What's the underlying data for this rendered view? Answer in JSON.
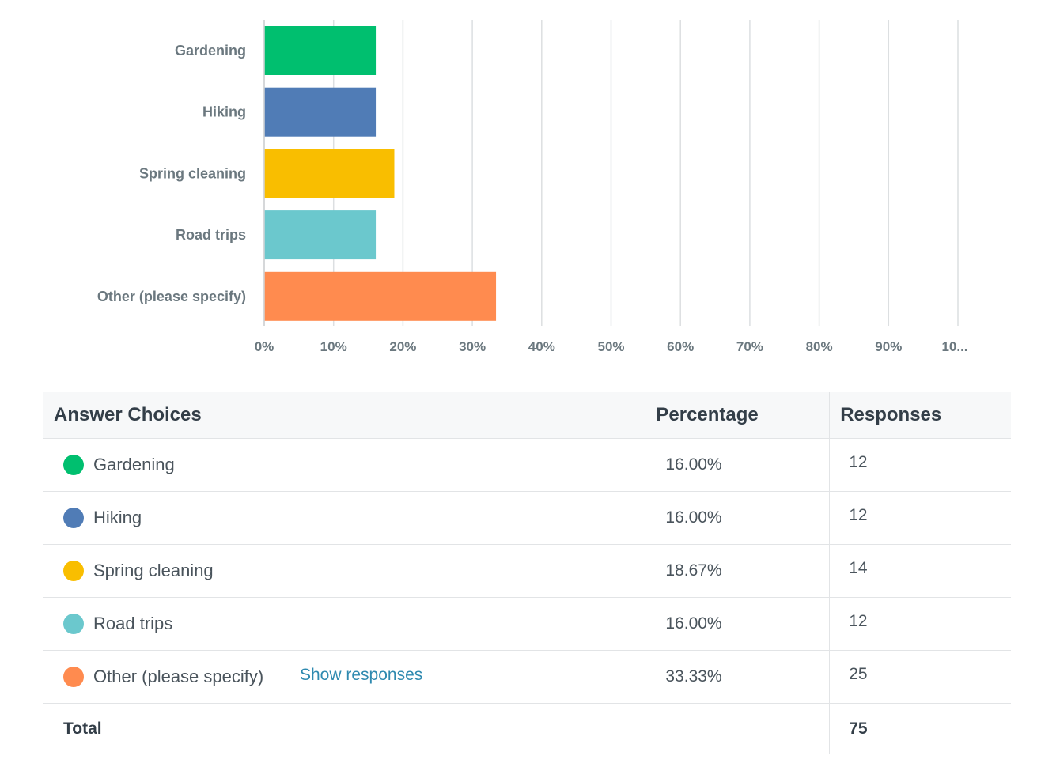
{
  "chart_data": {
    "type": "bar",
    "orientation": "horizontal",
    "categories": [
      "Gardening",
      "Hiking",
      "Spring cleaning",
      "Road trips",
      "Other (please specify)"
    ],
    "values": [
      16.0,
      16.0,
      18.67,
      16.0,
      33.33
    ],
    "colors": [
      "#00bf6f",
      "#507cb6",
      "#f9be00",
      "#6bc8cd",
      "#ff8b4f"
    ],
    "xlim": [
      0,
      100
    ],
    "x_ticks": [
      "0%",
      "10%",
      "20%",
      "30%",
      "40%",
      "50%",
      "60%",
      "70%",
      "80%",
      "90%",
      "10..."
    ],
    "grid": true,
    "title": "",
    "xlabel": "",
    "ylabel": ""
  },
  "table": {
    "headers": {
      "choices": "Answer Choices",
      "percentage": "Percentage",
      "responses": "Responses"
    },
    "rows": [
      {
        "label": "Gardening",
        "percentage": "16.00%",
        "responses": "12",
        "color": "#00bf6f"
      },
      {
        "label": "Hiking",
        "percentage": "16.00%",
        "responses": "12",
        "color": "#507cb6"
      },
      {
        "label": "Spring cleaning",
        "percentage": "18.67%",
        "responses": "14",
        "color": "#f9be00"
      },
      {
        "label": "Road trips",
        "percentage": "16.00%",
        "responses": "12",
        "color": "#6bc8cd"
      },
      {
        "label": "Other (please specify)",
        "percentage": "33.33%",
        "responses": "25",
        "color": "#ff8b4f",
        "link": "Show responses"
      }
    ],
    "total": {
      "label": "Total",
      "value": "75"
    }
  }
}
